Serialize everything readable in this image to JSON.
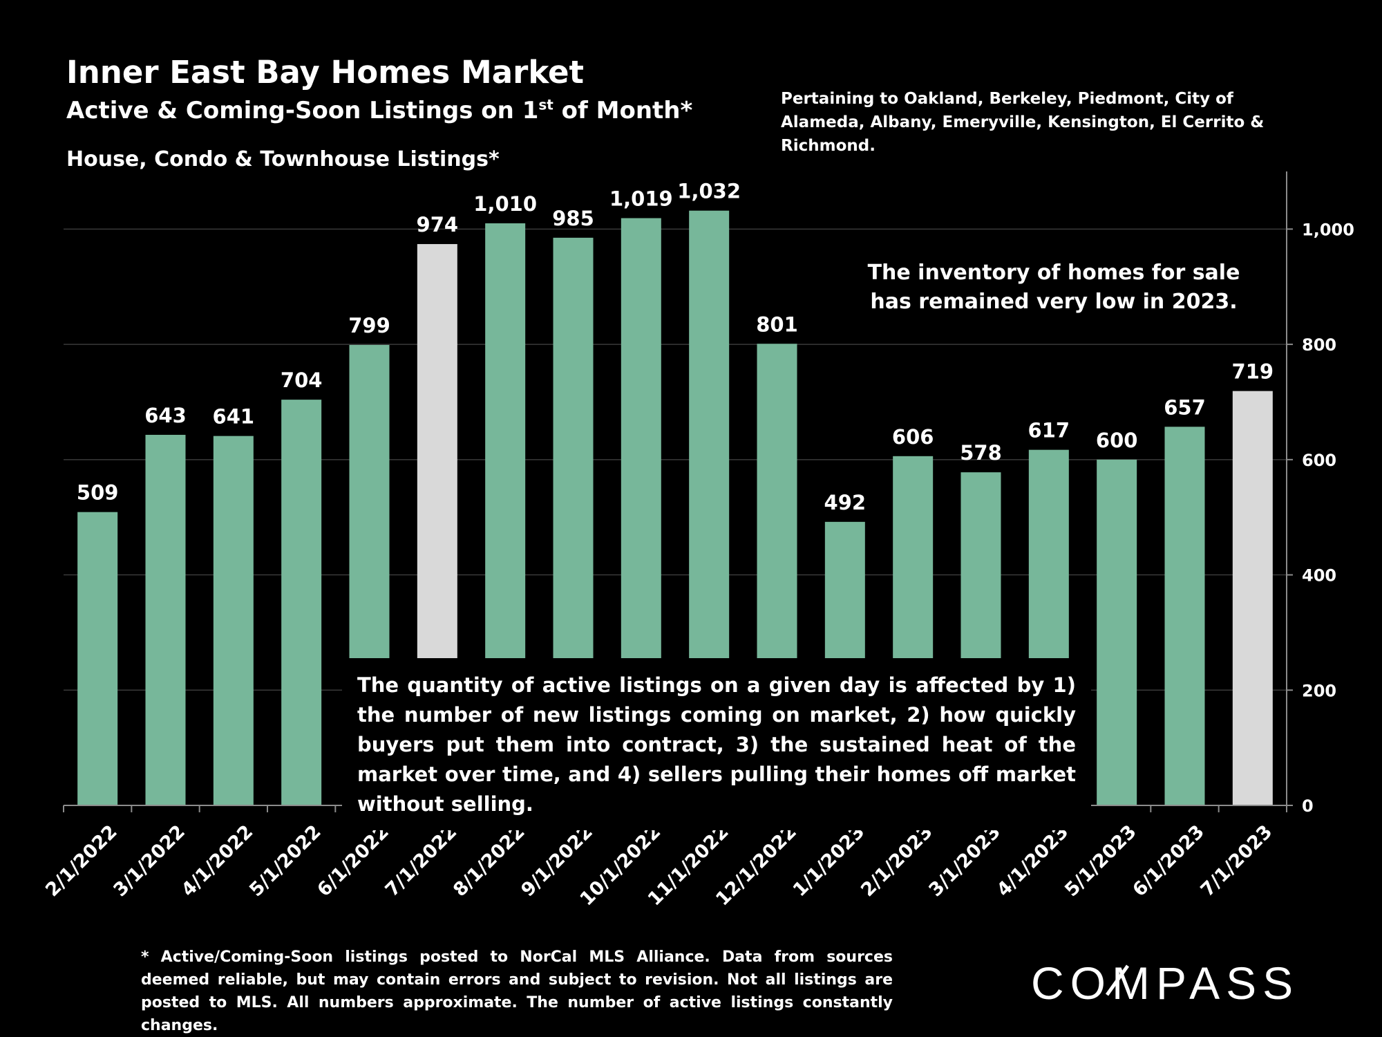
{
  "title": "Inner East Bay Homes Market",
  "subtitle_main": "Active & Coming-Soon Listings on 1",
  "subtitle_sup": "st",
  "subtitle_end": " of Month*",
  "subtitle2": "House, Condo & Townhouse Listings*",
  "region_note": "Pertaining to Oakland, Berkeley, Piedmont, City of Alameda, Albany, Emeryville, Kensington, El Cerrito & Richmond.",
  "inventory_note": "The inventory of homes for sale has remained very low in 2023.",
  "callout": "The quantity of active listings on a given day is affected by 1) the number of new listings coming on market, 2) how quickly buyers put them into contract, 3) the sustained heat of the market over time, and 4) sellers pulling their homes off market without selling.",
  "footnote": "* Active/Coming-Soon listings posted to NorCal MLS Alliance.  Data from sources deemed reliable, but may contain errors and subject to revision.  Not all listings are posted to MLS. All numbers approximate. The number of active listings constantly changes.",
  "logo": {
    "text": "COMPASS"
  },
  "colors": {
    "background": "#000000",
    "bar": "#77b79a",
    "highlight_bar": "#d9d9d9",
    "gridline": "#3a3a3a",
    "axis": "#8c8c8c",
    "text": "#ffffff"
  },
  "chart_data": {
    "type": "bar",
    "categories": [
      "2/1/2022",
      "3/1/2022",
      "4/1/2022",
      "5/1/2022",
      "6/1/2022",
      "7/1/2022",
      "8/1/2022",
      "9/1/2022",
      "10/1/2022",
      "11/1/2022",
      "12/1/2022",
      "1/1/2023",
      "2/1/2023",
      "3/1/2023",
      "4/1/2023",
      "5/1/2023",
      "6/1/2023",
      "7/1/2023"
    ],
    "values": [
      509,
      643,
      641,
      704,
      799,
      974,
      1010,
      985,
      1019,
      1032,
      801,
      492,
      606,
      578,
      617,
      600,
      657,
      719
    ],
    "value_labels": [
      "509",
      "643",
      "641",
      "704",
      "799",
      "974",
      "1,010",
      "985",
      "1,019",
      "1,032",
      "801",
      "492",
      "606",
      "578",
      "617",
      "600",
      "657",
      "719"
    ],
    "highlighted_categories": [
      "7/1/2022",
      "7/1/2023"
    ],
    "ylim": [
      0,
      1100
    ],
    "yticks": [
      0,
      200,
      400,
      600,
      800,
      1000
    ],
    "ytick_labels": [
      "0",
      "200",
      "400",
      "600",
      "800",
      "1,000"
    ],
    "yaxis_side": "right",
    "grid": true,
    "legend": "none",
    "xlabel": "",
    "ylabel": ""
  }
}
